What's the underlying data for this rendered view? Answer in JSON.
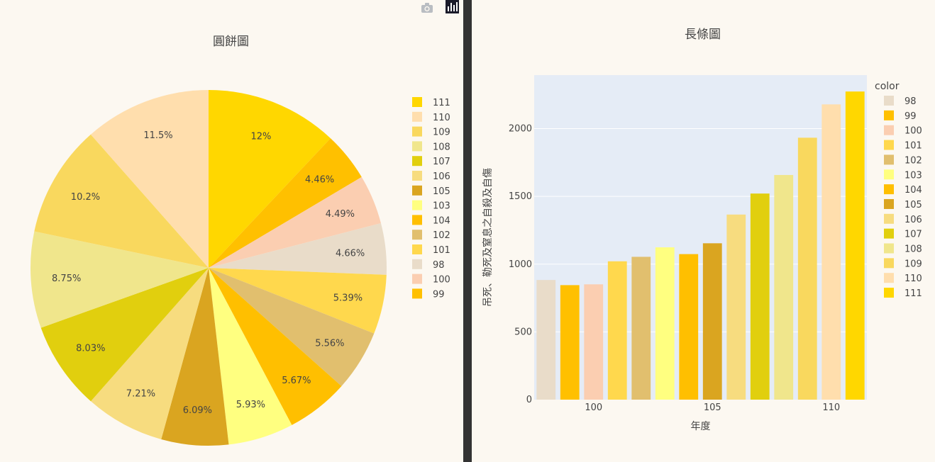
{
  "chart_data": [
    {
      "type": "pie",
      "title": "圓餅圖",
      "slices": [
        {
          "label": "111",
          "percent_label": "12%",
          "value": 2274,
          "color": "#FFD700"
        },
        {
          "label": "99",
          "percent_label": "4.46%",
          "value": 845,
          "color": "#FFC000"
        },
        {
          "label": "100",
          "percent_label": "4.49%",
          "value": 851,
          "color": "#FBCEB1"
        },
        {
          "label": "98",
          "percent_label": "4.66%",
          "value": 883,
          "color": "#E9DCC9"
        },
        {
          "label": "101",
          "percent_label": "5.39%",
          "value": 1021,
          "color": "#FFD84D"
        },
        {
          "label": "102",
          "percent_label": "5.56%",
          "value": 1054,
          "color": "#E1BF6E"
        },
        {
          "label": "104",
          "percent_label": "5.67%",
          "value": 1074,
          "color": "#FFBF00"
        },
        {
          "label": "103",
          "percent_label": "5.93%",
          "value": 1124,
          "color": "#FFFF80"
        },
        {
          "label": "105",
          "percent_label": "6.09%",
          "value": 1154,
          "color": "#DAA520"
        },
        {
          "label": "106",
          "percent_label": "7.21%",
          "value": 1366,
          "color": "#F7DC7F"
        },
        {
          "label": "107",
          "percent_label": "8.03%",
          "value": 1521,
          "color": "#E1CF0E"
        },
        {
          "label": "108",
          "percent_label": "8.75%",
          "value": 1658,
          "color": "#F0E68C"
        },
        {
          "label": "109",
          "percent_label": "10.2%",
          "value": 1933,
          "color": "#F9D85E"
        },
        {
          "label": "110",
          "percent_label": "11.5%",
          "value": 2179,
          "color": "#FFDEAD"
        }
      ],
      "legend_order": [
        "111",
        "110",
        "109",
        "108",
        "107",
        "106",
        "105",
        "103",
        "104",
        "102",
        "101",
        "98",
        "100",
        "99"
      ]
    },
    {
      "type": "bar",
      "title": "長條圖",
      "xlabel": "年度",
      "ylabel": "吊死、勒死及窒息之自殺及自傷",
      "legend_title": "color",
      "categories": [
        "98",
        "99",
        "100",
        "101",
        "102",
        "103",
        "104",
        "105",
        "106",
        "107",
        "108",
        "109",
        "110",
        "111"
      ],
      "x": [
        98,
        99,
        100,
        101,
        102,
        103,
        104,
        105,
        106,
        107,
        108,
        109,
        110,
        111
      ],
      "values": [
        883,
        845,
        851,
        1021,
        1054,
        1124,
        1074,
        1154,
        1366,
        1521,
        1658,
        1933,
        2179,
        2274
      ],
      "colors": [
        "#E9DCC9",
        "#FFC000",
        "#FBCEB1",
        "#FFD84D",
        "#E1BF6E",
        "#FFFF80",
        "#FFBF00",
        "#DAA520",
        "#F7DC7F",
        "#E1CF0E",
        "#F0E68C",
        "#F9D85E",
        "#FFDEAD",
        "#FFD700"
      ],
      "ylim": [
        0,
        2395
      ],
      "yticks": [
        0,
        500,
        1000,
        1500,
        2000
      ],
      "ytick_labels": [
        "0",
        "500",
        "1000",
        "1500",
        "2000"
      ],
      "xticks": [
        100,
        105,
        110
      ],
      "xtick_labels": [
        "100",
        "105",
        "110"
      ],
      "plot_bg": "#E5ECF6",
      "grid": true
    }
  ],
  "modebar": {
    "icons": [
      "camera-icon",
      "bar-chart-icon"
    ]
  }
}
